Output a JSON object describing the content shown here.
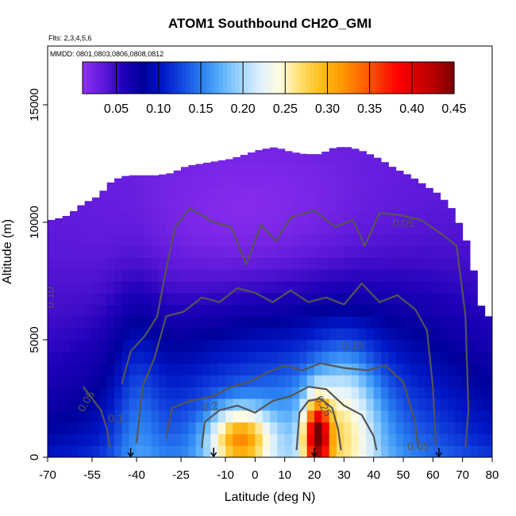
{
  "chart_data": {
    "type": "heatmap",
    "title": "ATOM1 Southbound CH2O_GMI",
    "flights_label": "Flts: 2,3,4,5,6",
    "dates_label": "MMDD: 0801,0803,0806,0808,0812",
    "xlabel": "Latitude (deg N)",
    "ylabel": "Altitude (m)",
    "xlim": [
      -70,
      80
    ],
    "ylim": [
      0,
      17500
    ],
    "x_ticks": [
      "-70",
      "-55",
      "-40",
      "-25",
      "-10",
      "0",
      "10",
      "20",
      "30",
      "40",
      "50",
      "60",
      "70",
      "80"
    ],
    "x_tick_values": [
      -70,
      -55,
      -40,
      -25,
      -10,
      0,
      10,
      20,
      30,
      40,
      50,
      60,
      70,
      80
    ],
    "y_ticks": [
      "0",
      "5000",
      "10000",
      "15000"
    ],
    "y_tick_values": [
      0,
      5000,
      10000,
      15000
    ],
    "colorbar": {
      "min": 0.01,
      "max": 0.45,
      "tick_labels": [
        "0.05",
        "0.10",
        "0.15",
        "0.20",
        "0.25",
        "0.30",
        "0.35",
        "0.40",
        "0.45"
      ],
      "tick_values": [
        0.05,
        0.1,
        0.15,
        0.2,
        0.25,
        0.3,
        0.35,
        0.4,
        0.45
      ]
    },
    "colors": [
      "#8d2ff0",
      "#5b18d8",
      "#1e00b8",
      "#00009a",
      "#0018c8",
      "#1448e0",
      "#2a80f2",
      "#5ab0fa",
      "#a2d6fd",
      "#e2f2ff",
      "#fffce0",
      "#ffe070",
      "#ffc020",
      "#ffa000",
      "#ff7000",
      "#f83c00",
      "#ff0000",
      "#d80000",
      "#b00000",
      "#720000"
    ],
    "contour_labels": [
      "0.05",
      "0.05",
      "0.05",
      "0.10",
      "0.15",
      "0.2",
      "0.25",
      "0.1"
    ],
    "profile_lat_values": [
      -68,
      -63,
      -58,
      -53,
      -48,
      -43,
      -38,
      -33,
      -28,
      -23,
      -18,
      -13,
      -8,
      -3,
      2,
      7,
      12,
      17,
      22,
      27,
      32,
      37,
      42,
      47,
      52,
      57,
      62,
      67,
      72,
      77
    ],
    "profile_top_altitude": [
      10100,
      10300,
      10800,
      11100,
      11800,
      12000,
      12000,
      12000,
      12100,
      12400,
      12500,
      12600,
      12700,
      12900,
      13100,
      13200,
      13000,
      12900,
      12900,
      13200,
      13200,
      13000,
      12700,
      12300,
      12000,
      11600,
      11200,
      10500,
      9000,
      6000
    ],
    "grid": false,
    "legend": "top-colorbar"
  }
}
